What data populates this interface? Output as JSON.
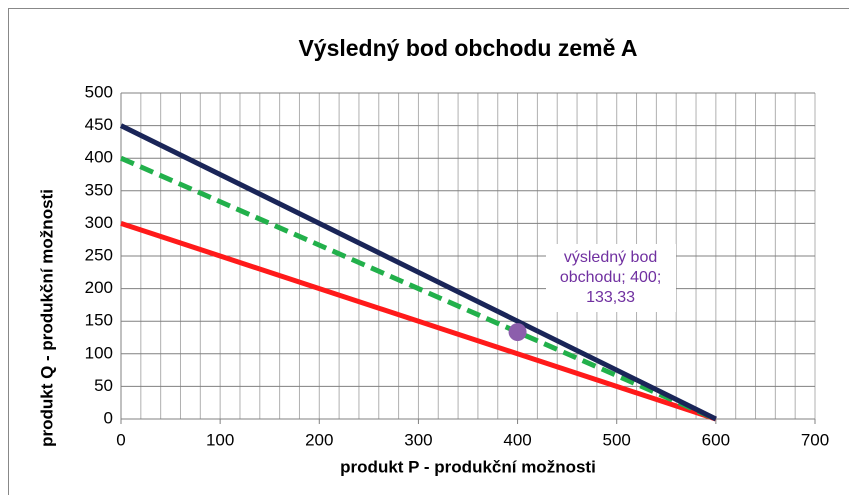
{
  "chart_data": {
    "type": "line",
    "title": "Výsledný bod obchodu země A",
    "xlabel": "produkt P - produkční možnosti",
    "ylabel": "produkt Q - produkční možnosti",
    "xlim": [
      0,
      700
    ],
    "ylim": [
      0,
      500
    ],
    "xticks": [
      0,
      100,
      200,
      300,
      400,
      500,
      600,
      700
    ],
    "yticks": [
      0,
      50,
      100,
      150,
      200,
      250,
      300,
      350,
      400,
      450,
      500
    ],
    "xgrid": [
      0,
      20,
      40,
      60,
      80,
      100,
      120,
      140,
      160,
      180,
      200,
      220,
      240,
      260,
      280,
      300,
      320,
      340,
      360,
      380,
      400,
      420,
      440,
      460,
      480,
      500,
      520,
      540,
      560,
      580,
      600,
      620,
      640,
      660,
      680,
      700
    ],
    "grid": true,
    "series": [
      {
        "color": "#ff1a1a",
        "dashed": false,
        "x": [
          0,
          600
        ],
        "values": [
          300,
          0
        ]
      },
      {
        "color": "#22b04b",
        "dashed": true,
        "x": [
          0,
          600
        ],
        "values": [
          400,
          0
        ]
      },
      {
        "color": "#1a2558",
        "dashed": false,
        "x": [
          0,
          600
        ],
        "values": [
          450,
          0
        ]
      }
    ],
    "points": [
      {
        "color": "#8c5eac",
        "x": [
          400
        ],
        "values": [
          133.33
        ],
        "value_labels": [
          "výsledný bod obchodu; 400; 133,33"
        ]
      }
    ]
  }
}
